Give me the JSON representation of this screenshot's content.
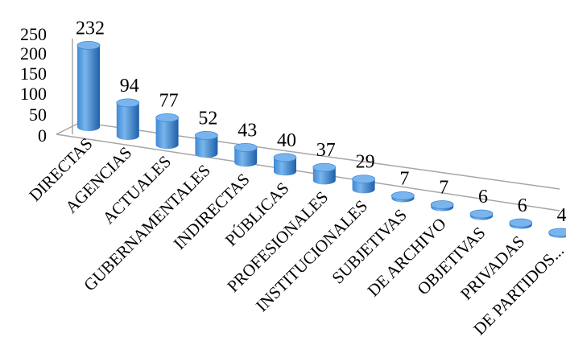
{
  "chart_data": {
    "type": "bar",
    "style": "3d-cylinder",
    "title": "",
    "xlabel": "",
    "ylabel": "",
    "categories": [
      "DIRECTAS",
      "AGENCIAS",
      "ACTUALES",
      "GUBERNAMENTALES",
      "INDIRECTAS",
      "PÚBLICAS",
      "PROFESIONALES",
      "INSTITUCIONALES",
      "SUBJETIVAS",
      "DE ARCHIVO",
      "OBJETIVAS",
      "PRIVADAS",
      "DE PARTIDOS..."
    ],
    "values": [
      232,
      94,
      77,
      52,
      43,
      40,
      37,
      29,
      7,
      7,
      6,
      6,
      4
    ],
    "ylim": [
      0,
      250
    ],
    "yticks": [
      "0",
      "50",
      "100",
      "150",
      "200",
      "250"
    ],
    "grid": false,
    "legend": "none",
    "colors": {
      "bar_light": "#79b5ec",
      "bar_mid": "#3f89d6",
      "bar_dark": "#1e5fa8",
      "axis": "#a6a6a6"
    }
  }
}
